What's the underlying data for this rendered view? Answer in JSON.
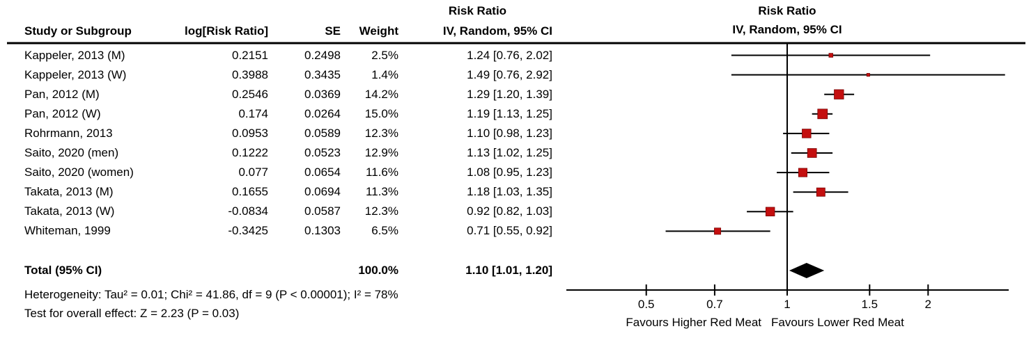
{
  "colors": {
    "marker_fill": "#C40F0F",
    "marker_stroke": "#7A0404",
    "line": "#000000",
    "diamond": "#000000",
    "text": "#000000"
  },
  "header": {
    "left_effect_title": "Risk Ratio",
    "left_method": "IV, Random, 95% CI",
    "right_effect_title": "Risk Ratio",
    "right_method": "IV, Random, 95% CI",
    "col_study": "Study or Subgroup",
    "col_log": "log[Risk Ratio]",
    "col_se": "SE",
    "col_weight": "Weight"
  },
  "table": {
    "rows": [
      {
        "study": "Kappeler, 2013 (M)",
        "log_rr": "0.2151",
        "se": "0.2498",
        "weight": "2.5%",
        "ci": "1.24 [0.76, 2.02]"
      },
      {
        "study": "Kappeler, 2013 (W)",
        "log_rr": "0.3988",
        "se": "0.3435",
        "weight": "1.4%",
        "ci": "1.49 [0.76, 2.92]"
      },
      {
        "study": "Pan, 2012 (M)",
        "log_rr": "0.2546",
        "se": "0.0369",
        "weight": "14.2%",
        "ci": "1.29 [1.20, 1.39]"
      },
      {
        "study": "Pan, 2012 (W)",
        "log_rr": "0.174",
        "se": "0.0264",
        "weight": "15.0%",
        "ci": "1.19 [1.13, 1.25]"
      },
      {
        "study": "Rohrmann, 2013",
        "log_rr": "0.0953",
        "se": "0.0589",
        "weight": "12.3%",
        "ci": "1.10 [0.98, 1.23]"
      },
      {
        "study": "Saito, 2020 (men)",
        "log_rr": "0.1222",
        "se": "0.0523",
        "weight": "12.9%",
        "ci": "1.13 [1.02, 1.25]"
      },
      {
        "study": "Saito, 2020 (women)",
        "log_rr": "0.077",
        "se": "0.0654",
        "weight": "11.6%",
        "ci": "1.08 [0.95, 1.23]"
      },
      {
        "study": "Takata, 2013 (M)",
        "log_rr": "0.1655",
        "se": "0.0694",
        "weight": "11.3%",
        "ci": "1.18 [1.03, 1.35]"
      },
      {
        "study": "Takata, 2013 (W)",
        "log_rr": "-0.0834",
        "se": "0.0587",
        "weight": "12.3%",
        "ci": "0.92 [0.82, 1.03]"
      },
      {
        "study": "Whiteman, 1999",
        "log_rr": "-0.3425",
        "se": "0.1303",
        "weight": "6.5%",
        "ci": "0.71 [0.55, 0.92]"
      }
    ],
    "total": {
      "label": "Total (95% CI)",
      "weight": "100.0%",
      "ci": "1.10 [1.01, 1.20]"
    },
    "heterogeneity": "Heterogeneity: Tau² = 0.01; Chi² = 41.86, df = 9 (P < 0.00001); I² = 78%",
    "overall_effect": "Test for overall effect: Z = 2.23 (P = 0.03)"
  },
  "chart_data": {
    "type": "forest",
    "effect_measure": "Risk Ratio",
    "model": "IV, Random, 95% CI",
    "x_scale": "log",
    "x_ticks": [
      0.5,
      0.7,
      1,
      1.5,
      2
    ],
    "x_tick_labels": [
      "0.5",
      "0.7",
      "1",
      "1.5",
      "2"
    ],
    "x_range": [
      0.34,
      2.97
    ],
    "null_line": 1,
    "studies": [
      {
        "label": "Kappeler, 2013 (M)",
        "rr": 1.24,
        "ci_low": 0.76,
        "ci_high": 2.02,
        "weight_pct": 2.5
      },
      {
        "label": "Kappeler, 2013 (W)",
        "rr": 1.49,
        "ci_low": 0.76,
        "ci_high": 2.92,
        "weight_pct": 1.4
      },
      {
        "label": "Pan, 2012 (M)",
        "rr": 1.29,
        "ci_low": 1.2,
        "ci_high": 1.39,
        "weight_pct": 14.2
      },
      {
        "label": "Pan, 2012 (W)",
        "rr": 1.19,
        "ci_low": 1.13,
        "ci_high": 1.25,
        "weight_pct": 15.0
      },
      {
        "label": "Rohrmann, 2013",
        "rr": 1.1,
        "ci_low": 0.98,
        "ci_high": 1.23,
        "weight_pct": 12.3
      },
      {
        "label": "Saito, 2020 (men)",
        "rr": 1.13,
        "ci_low": 1.02,
        "ci_high": 1.25,
        "weight_pct": 12.9
      },
      {
        "label": "Saito, 2020 (women)",
        "rr": 1.08,
        "ci_low": 0.95,
        "ci_high": 1.23,
        "weight_pct": 11.6
      },
      {
        "label": "Takata, 2013 (M)",
        "rr": 1.18,
        "ci_low": 1.03,
        "ci_high": 1.35,
        "weight_pct": 11.3
      },
      {
        "label": "Takata, 2013 (W)",
        "rr": 0.92,
        "ci_low": 0.82,
        "ci_high": 1.03,
        "weight_pct": 12.3
      },
      {
        "label": "Whiteman, 1999",
        "rr": 0.71,
        "ci_low": 0.55,
        "ci_high": 0.92,
        "weight_pct": 6.5
      }
    ],
    "total": {
      "label": "Total (95% CI)",
      "rr": 1.1,
      "ci_low": 1.01,
      "ci_high": 1.2,
      "weight_pct": 100.0
    },
    "footer_left": "Favours Higher Red Meat",
    "footer_right": "Favours Lower Red Meat",
    "heterogeneity": {
      "tau2": 0.01,
      "chi2": 41.86,
      "df": 9,
      "p": "< 0.00001",
      "i2_pct": 78
    },
    "overall_effect": {
      "z": 2.23,
      "p": 0.03
    }
  }
}
